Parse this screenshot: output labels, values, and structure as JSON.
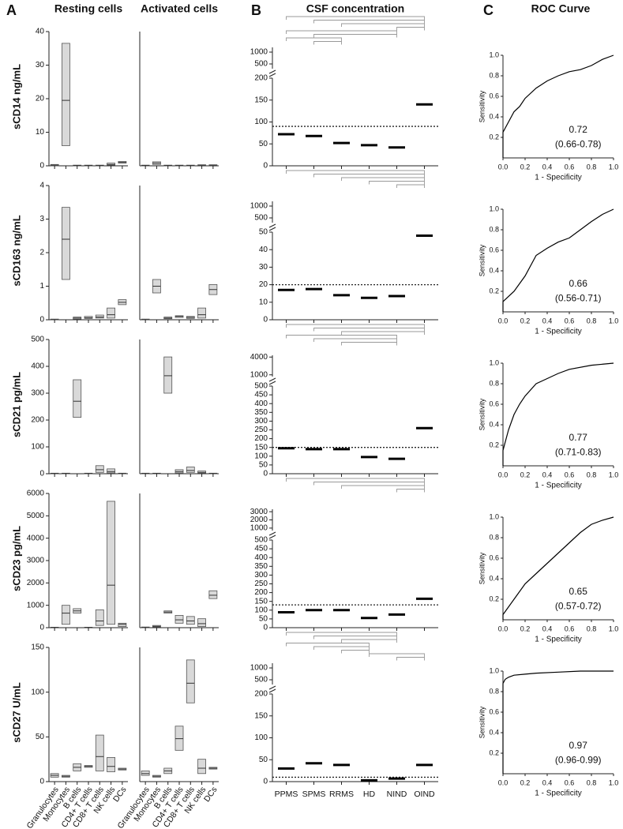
{
  "headers": {
    "a": "A",
    "resting": "Resting cells",
    "activated": "Activated cells",
    "b": "B",
    "csf": "CSF concentration",
    "c": "C",
    "roc": "ROC Curve"
  },
  "chart_data": [
    {
      "type": "box",
      "ylabel": "sCD14 ng/mL",
      "ylim": [
        0,
        40
      ],
      "yticks": [
        0,
        10,
        20,
        30,
        40
      ],
      "q1": [
        0,
        6,
        0,
        0,
        0.05,
        0.2,
        0.8
      ],
      "median": [
        0.2,
        19.5,
        0.1,
        0.1,
        0.1,
        0.4,
        1
      ],
      "q3": [
        0.4,
        36.5,
        0.2,
        0.2,
        0.2,
        0.8,
        1.3
      ]
    },
    {
      "type": "box",
      "ylim": [
        0,
        40
      ],
      "q1": [
        0,
        0.4,
        0,
        0,
        0,
        0.1,
        0.1
      ],
      "median": [
        0.1,
        0.8,
        0.1,
        0.1,
        0.1,
        0.2,
        0.2
      ],
      "q3": [
        0.2,
        1.2,
        0.2,
        0.2,
        0.2,
        0.3,
        0.3
      ]
    },
    {
      "type": "dot",
      "ylim": [
        0,
        200
      ],
      "yticks": [
        0,
        50,
        100,
        150,
        200
      ],
      "ylim_upper": [
        300,
        1200
      ],
      "yticks_upper": [
        500,
        1000
      ],
      "threshold": 90,
      "median": [
        72,
        68,
        52,
        47,
        42,
        140
      ]
    },
    {
      "type": "roc",
      "x": [
        0,
        0,
        0.05,
        0.1,
        0.15,
        0.2,
        0.3,
        0.4,
        0.5,
        0.6,
        0.7,
        0.8,
        0.9,
        1
      ],
      "y": [
        0,
        0.25,
        0.35,
        0.45,
        0.5,
        0.58,
        0.68,
        0.75,
        0.8,
        0.84,
        0.86,
        0.9,
        0.96,
        1
      ],
      "xlim": [
        0,
        1
      ],
      "ylim": [
        0,
        1
      ],
      "xticks": [
        {
          "value": 0,
          "label": "0.0"
        },
        0.2,
        0.4,
        0.6,
        0.8,
        {
          "value": 1,
          "label": "1.0"
        }
      ],
      "yticks": [
        0.2,
        0.4,
        0.6,
        0.8,
        {
          "value": 1,
          "label": "1.0"
        }
      ],
      "xlabel": "1 - Specificity",
      "ylabel": "Sensitivity",
      "auc": 0.72,
      "ci": "(0.66-0.78)"
    },
    {
      "type": "box",
      "ylabel": "sCD163 ng/mL",
      "ylim": [
        0,
        4
      ],
      "yticks": [
        0,
        1,
        2,
        3,
        4
      ],
      "q1": [
        0,
        1.2,
        0.02,
        0.04,
        0.05,
        0.05,
        0.45
      ],
      "median": [
        0,
        2.4,
        0.05,
        0.06,
        0.08,
        0.15,
        0.52
      ],
      "q3": [
        0.02,
        3.35,
        0.08,
        0.1,
        0.14,
        0.35,
        0.6
      ]
    },
    {
      "type": "box",
      "ylim": [
        0,
        4
      ],
      "q1": [
        0,
        0.8,
        0.03,
        0.07,
        0.04,
        0.05,
        0.75
      ],
      "median": [
        0,
        1,
        0.05,
        0.1,
        0.07,
        0.15,
        0.9
      ],
      "q3": [
        0.02,
        1.2,
        0.08,
        0.12,
        0.1,
        0.35,
        1.05
      ]
    },
    {
      "type": "dot",
      "ylim": [
        0,
        50
      ],
      "yticks": [
        0,
        10,
        20,
        30,
        40,
        50
      ],
      "ylim_upper": [
        300,
        1200
      ],
      "yticks_upper": [
        500,
        1000
      ],
      "threshold": 20,
      "median": [
        17,
        17.5,
        14,
        12.5,
        13.5,
        48
      ]
    },
    {
      "type": "roc",
      "x": [
        0,
        0,
        0.1,
        0.2,
        0.3,
        0.4,
        0.5,
        0.6,
        0.7,
        0.8,
        0.9,
        1
      ],
      "y": [
        0,
        0.1,
        0.2,
        0.35,
        0.55,
        0.62,
        0.68,
        0.72,
        0.8,
        0.88,
        0.95,
        1
      ],
      "xlim": [
        0,
        1
      ],
      "ylim": [
        0,
        1
      ],
      "xticks": [
        {
          "value": 0,
          "label": "0.0"
        },
        0.2,
        0.4,
        0.6,
        0.8,
        {
          "value": 1,
          "label": "1.0"
        }
      ],
      "yticks": [
        0.2,
        0.4,
        0.6,
        0.8,
        {
          "value": 1,
          "label": "1.0"
        }
      ],
      "xlabel": "1 - Specificity",
      "ylabel": "Sensitivity",
      "auc": 0.66,
      "ci": "(0.56-0.71)"
    },
    {
      "type": "box",
      "ylabel": "sCD21 pg/mL",
      "ylim": [
        0,
        500
      ],
      "yticks": [
        0,
        100,
        200,
        300,
        400,
        500
      ],
      "q1": [
        0,
        0,
        210,
        0,
        5,
        3,
        0
      ],
      "median": [
        1,
        1,
        270,
        1,
        15,
        8,
        1
      ],
      "q3": [
        2,
        2,
        350,
        2,
        30,
        18,
        2
      ]
    },
    {
      "type": "box",
      "ylim": [
        0,
        500
      ],
      "q1": [
        0,
        0,
        300,
        3,
        5,
        2,
        0
      ],
      "median": [
        1,
        1,
        365,
        8,
        12,
        5,
        1
      ],
      "q3": [
        2,
        2,
        435,
        15,
        25,
        10,
        2
      ]
    },
    {
      "type": "dot",
      "ylim": [
        0,
        500
      ],
      "yticks": [
        0,
        50,
        100,
        150,
        200,
        250,
        300,
        350,
        400,
        450,
        500
      ],
      "ylim_upper": [
        700,
        4300
      ],
      "yticks_upper": [
        1000,
        4000
      ],
      "threshold": 150,
      "median": [
        145,
        140,
        140,
        95,
        85,
        260
      ]
    },
    {
      "type": "roc",
      "x": [
        0,
        0,
        0.05,
        0.1,
        0.15,
        0.2,
        0.3,
        0.4,
        0.5,
        0.6,
        0.8,
        1
      ],
      "y": [
        0,
        0.15,
        0.35,
        0.5,
        0.6,
        0.68,
        0.8,
        0.85,
        0.9,
        0.94,
        0.98,
        1
      ],
      "xlim": [
        0,
        1
      ],
      "ylim": [
        0,
        1
      ],
      "xticks": [
        {
          "value": 0,
          "label": "0.0"
        },
        0.2,
        0.4,
        0.6,
        0.8,
        {
          "value": 1,
          "label": "1.0"
        }
      ],
      "yticks": [
        0.2,
        0.4,
        0.6,
        0.8,
        {
          "value": 1,
          "label": "1.0"
        }
      ],
      "xlabel": "1 - Specificity",
      "ylabel": "Sensitivity",
      "auc": 0.77,
      "ci": "(0.71-0.83)"
    },
    {
      "type": "box",
      "ylabel": "sCD23 pg/mL",
      "ylim": [
        0,
        6000
      ],
      "yticks": [
        0,
        1000,
        2000,
        3000,
        4000,
        5000,
        6000
      ],
      "q1": [
        0,
        150,
        650,
        0,
        100,
        150,
        50
      ],
      "median": [
        10,
        650,
        750,
        10,
        300,
        1900,
        150
      ],
      "q3": [
        20,
        1000,
        850,
        20,
        800,
        5650,
        200
      ]
    },
    {
      "type": "box",
      "ylim": [
        0,
        6000
      ],
      "q1": [
        0,
        30,
        650,
        200,
        150,
        50,
        1300
      ],
      "median": [
        10,
        60,
        700,
        350,
        300,
        180,
        1450
      ],
      "q3": [
        30,
        100,
        750,
        550,
        500,
        400,
        1650
      ]
    },
    {
      "type": "dot",
      "ylim": [
        0,
        500
      ],
      "yticks": [
        0,
        50,
        100,
        150,
        200,
        250,
        300,
        350,
        400,
        450,
        500
      ],
      "ylim_upper": [
        700,
        3300
      ],
      "yticks_upper": [
        1000,
        2000,
        3000
      ],
      "threshold": 130,
      "median": [
        88,
        100,
        100,
        55,
        75,
        165
      ]
    },
    {
      "type": "roc",
      "x": [
        0,
        0,
        0.1,
        0.2,
        0.3,
        0.4,
        0.5,
        0.6,
        0.7,
        0.8,
        0.9,
        1
      ],
      "y": [
        0,
        0.05,
        0.2,
        0.35,
        0.45,
        0.55,
        0.65,
        0.75,
        0.85,
        0.93,
        0.97,
        1
      ],
      "xlim": [
        0,
        1
      ],
      "ylim": [
        0,
        1
      ],
      "xticks": [
        {
          "value": 0,
          "label": "0.0"
        },
        0.2,
        0.4,
        0.6,
        0.8,
        {
          "value": 1,
          "label": "1.0"
        }
      ],
      "yticks": [
        0.2,
        0.4,
        0.6,
        0.8,
        {
          "value": 1,
          "label": "1.0"
        }
      ],
      "xlabel": "1 - Specificity",
      "ylabel": "Sensitivity",
      "auc": 0.65,
      "ci": "(0.57-0.72)"
    },
    {
      "type": "box",
      "ylabel": "sCD27 U/mL",
      "ylim": [
        0,
        150
      ],
      "yticks": [
        0,
        50,
        100,
        150
      ],
      "categories": [
        "Granulocytes",
        "Monocytes",
        "B cells",
        "CD4+ T cells",
        "CD8+ T cells",
        "NK cells",
        "DCs"
      ],
      "q1": [
        5,
        5,
        12,
        16,
        12,
        11,
        13
      ],
      "median": [
        7,
        6,
        16,
        17,
        28,
        17,
        14
      ],
      "q3": [
        9,
        7,
        20,
        18,
        52,
        27,
        15
      ]
    },
    {
      "type": "box",
      "ylim": [
        0,
        150
      ],
      "categories": [
        "Granulocytes",
        "Monocytes",
        "B cells",
        "CD4+ T cells",
        "CD8+ T cells",
        "NK cells",
        "DCs"
      ],
      "q1": [
        7,
        5,
        9,
        35,
        88,
        9,
        14
      ],
      "median": [
        9,
        6,
        12,
        48,
        110,
        15,
        15
      ],
      "q3": [
        12,
        7,
        15,
        62,
        136,
        25,
        16
      ]
    },
    {
      "type": "dot",
      "ylim": [
        0,
        200
      ],
      "yticks": [
        0,
        50,
        100,
        150,
        200
      ],
      "ylim_upper": [
        300,
        1200
      ],
      "yticks_upper": [
        500,
        1000
      ],
      "threshold": 10,
      "categories": [
        "PPMS",
        "SPMS",
        "RRMS",
        "HD",
        "NIND",
        "OIND"
      ],
      "median": [
        30,
        42,
        38,
        3,
        7,
        38
      ]
    },
    {
      "type": "roc",
      "x": [
        0,
        0,
        0.02,
        0.05,
        0.1,
        0.2,
        0.3,
        0.5,
        0.7,
        1
      ],
      "y": [
        0,
        0.88,
        0.92,
        0.94,
        0.96,
        0.97,
        0.98,
        0.99,
        1,
        1
      ],
      "xlim": [
        0,
        1
      ],
      "ylim": [
        0,
        1
      ],
      "xticks": [
        {
          "value": 0,
          "label": "0.0"
        },
        0.2,
        0.4,
        0.6,
        0.8,
        {
          "value": 1,
          "label": "1.0"
        }
      ],
      "yticks": [
        0.2,
        0.4,
        0.6,
        0.8,
        {
          "value": 1,
          "label": "1.0"
        }
      ],
      "xlabel": "1 - Specificity",
      "ylabel": "Sensitivity",
      "auc": 0.97,
      "ci": "(0.96-0.99)"
    }
  ]
}
